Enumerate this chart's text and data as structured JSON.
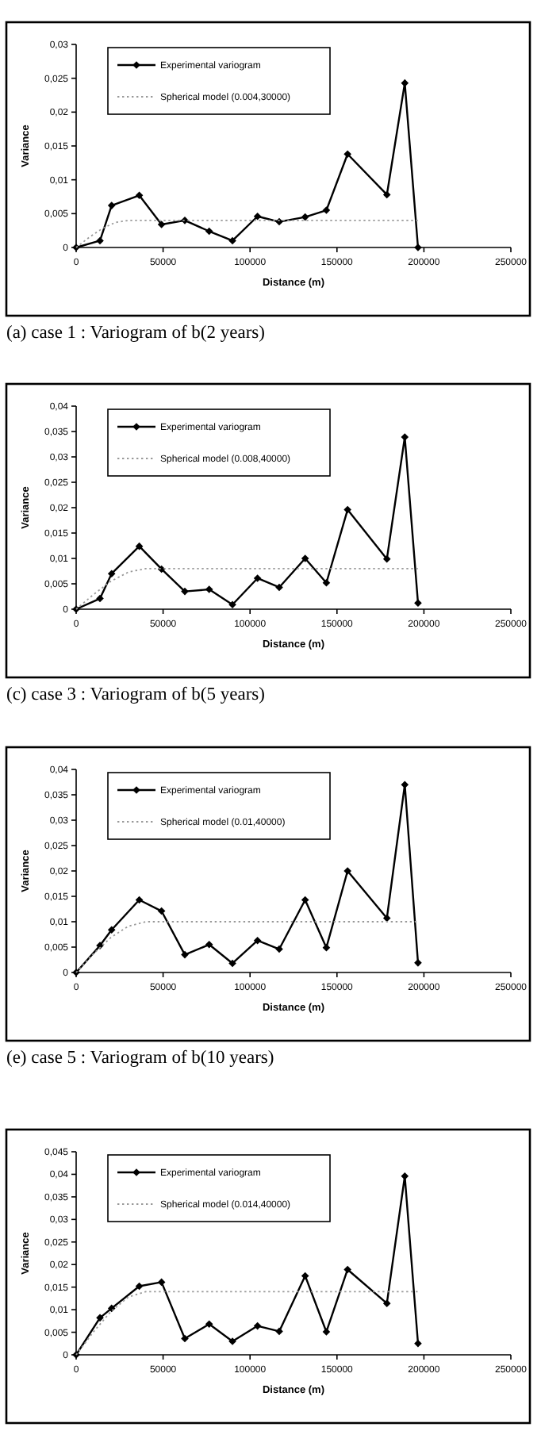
{
  "chart_data": [
    {
      "type": "line",
      "xlabel": "Distance (m)",
      "ylabel": "Variance",
      "annotations": [
        "(a) case 1 : Variogram of b(2 years)"
      ],
      "xlim": [
        0,
        250000
      ],
      "xticks": [
        0,
        50000,
        100000,
        150000,
        200000,
        250000
      ],
      "ylim": [
        0,
        0.03
      ],
      "yticks": [
        {
          "value": 0,
          "label": "0"
        },
        {
          "value": 0.005,
          "label": "0,005"
        },
        {
          "value": 0.01,
          "label": "0,01"
        },
        {
          "value": 0.015,
          "label": "0,015"
        },
        {
          "value": 0.02,
          "label": "0,02"
        },
        {
          "value": 0.025,
          "label": "0,025"
        },
        {
          "value": 0.03,
          "label": "0,03"
        }
      ],
      "legend": "top left",
      "grid": false,
      "series": [
        {
          "name": "Experimental variogram",
          "color": "#000000",
          "marker": "diamond",
          "line_style": "solid",
          "x": [
            0,
            13700,
            20400,
            36300,
            49100,
            62500,
            76500,
            89900,
            104300,
            116800,
            131700,
            143900,
            156100,
            178700,
            189000,
            196600
          ],
          "values": [
            0,
            0.001,
            0.0062,
            0.0077,
            0.0034,
            0.004,
            0.0024,
            0.001,
            0.0046,
            0.0038,
            0.0045,
            0.0055,
            0.0138,
            0.0078,
            0.0243,
            0
          ]
        },
        {
          "name": "Spherical model (0.004,30000)",
          "color": "#999999",
          "marker": "none",
          "line_style": "dotted",
          "x": [
            0,
            7500,
            15000,
            22500,
            30000,
            196600
          ],
          "values": [
            0,
            0.0015,
            0.0028,
            0.0037,
            0.004,
            0.004
          ]
        }
      ]
    },
    {
      "type": "line",
      "xlabel": "Distance (m)",
      "ylabel": "Variance",
      "annotations": [
        "(c) case 3 : Variogram of b(5 years)"
      ],
      "xlim": [
        0,
        250000
      ],
      "xticks": [
        0,
        50000,
        100000,
        150000,
        200000,
        250000
      ],
      "ylim": [
        0,
        0.04
      ],
      "yticks": [
        {
          "value": 0,
          "label": "0"
        },
        {
          "value": 0.005,
          "label": "0,005"
        },
        {
          "value": 0.01,
          "label": "0,01"
        },
        {
          "value": 0.015,
          "label": "0,015"
        },
        {
          "value": 0.02,
          "label": "0,02"
        },
        {
          "value": 0.025,
          "label": "0,025"
        },
        {
          "value": 0.03,
          "label": "0,03"
        },
        {
          "value": 0.035,
          "label": "0,035"
        },
        {
          "value": 0.04,
          "label": "0,04"
        }
      ],
      "legend": "top left",
      "grid": false,
      "series": [
        {
          "name": "Experimental variogram",
          "color": "#000000",
          "marker": "diamond",
          "line_style": "solid",
          "x": [
            0,
            13700,
            20400,
            36300,
            49100,
            62500,
            76500,
            89900,
            104300,
            116800,
            131700,
            143900,
            156100,
            178700,
            189000,
            196600
          ],
          "values": [
            0,
            0.0021,
            0.007,
            0.0124,
            0.0079,
            0.0035,
            0.0039,
            0.0009,
            0.0061,
            0.0043,
            0.01,
            0.0052,
            0.0196,
            0.0099,
            0.0339,
            0.0012
          ]
        },
        {
          "name": "Spherical model (0.008,40000)",
          "color": "#999999",
          "marker": "none",
          "line_style": "dotted",
          "x": [
            0,
            10000,
            20000,
            30000,
            40000,
            196600
          ],
          "values": [
            0,
            0.0029,
            0.0055,
            0.0073,
            0.008,
            0.008
          ]
        }
      ]
    },
    {
      "type": "line",
      "xlabel": "Distance (m)",
      "ylabel": "Variance",
      "annotations": [
        "(e) case 5 : Variogram of b(10  years)"
      ],
      "xlim": [
        0,
        250000
      ],
      "xticks": [
        0,
        50000,
        100000,
        150000,
        200000,
        250000
      ],
      "ylim": [
        0,
        0.04
      ],
      "yticks": [
        {
          "value": 0,
          "label": "0"
        },
        {
          "value": 0.005,
          "label": "0,005"
        },
        {
          "value": 0.01,
          "label": "0,01"
        },
        {
          "value": 0.015,
          "label": "0,015"
        },
        {
          "value": 0.02,
          "label": "0,02"
        },
        {
          "value": 0.025,
          "label": "0,025"
        },
        {
          "value": 0.03,
          "label": "0,03"
        },
        {
          "value": 0.035,
          "label": "0,035"
        },
        {
          "value": 0.04,
          "label": "0,04"
        }
      ],
      "legend": "top left",
      "grid": false,
      "series": [
        {
          "name": "Experimental variogram",
          "color": "#000000",
          "marker": "diamond",
          "line_style": "solid",
          "x": [
            0,
            13700,
            20400,
            36300,
            49100,
            62500,
            76500,
            89900,
            104300,
            116800,
            131700,
            143900,
            156100,
            178700,
            189000,
            196600
          ],
          "values": [
            0,
            0.0053,
            0.0084,
            0.0143,
            0.0121,
            0.0035,
            0.0055,
            0.0018,
            0.0063,
            0.0046,
            0.0143,
            0.0049,
            0.02,
            0.0107,
            0.037,
            0.0019
          ]
        },
        {
          "name": "Spherical model (0.01,40000)",
          "color": "#999999",
          "marker": "none",
          "line_style": "dotted",
          "x": [
            0,
            10000,
            20000,
            30000,
            40000,
            196600
          ],
          "values": [
            0,
            0.0037,
            0.0069,
            0.0091,
            0.01,
            0.01
          ]
        }
      ]
    },
    {
      "type": "line",
      "xlabel": "Distance (m)",
      "ylabel": "Variance",
      "xlim": [
        0,
        250000
      ],
      "xticks": [
        0,
        50000,
        100000,
        150000,
        200000,
        250000
      ],
      "ylim": [
        0,
        0.045
      ],
      "yticks": [
        {
          "value": 0,
          "label": "0"
        },
        {
          "value": 0.005,
          "label": "0,005"
        },
        {
          "value": 0.01,
          "label": "0,01"
        },
        {
          "value": 0.015,
          "label": "0,015"
        },
        {
          "value": 0.02,
          "label": "0,02"
        },
        {
          "value": 0.025,
          "label": "0,025"
        },
        {
          "value": 0.03,
          "label": "0,03"
        },
        {
          "value": 0.035,
          "label": "0,035"
        },
        {
          "value": 0.04,
          "label": "0,04"
        },
        {
          "value": 0.045,
          "label": "0,045"
        }
      ],
      "legend": "top left",
      "grid": false,
      "series": [
        {
          "name": "Experimental variogram",
          "color": "#000000",
          "marker": "diamond",
          "line_style": "solid",
          "x": [
            0,
            13700,
            20400,
            36300,
            49100,
            62500,
            76500,
            89900,
            104300,
            116800,
            131700,
            143900,
            156100,
            178700,
            189000,
            196600
          ],
          "values": [
            0,
            0.0082,
            0.0103,
            0.0152,
            0.0161,
            0.0036,
            0.0068,
            0.003,
            0.0064,
            0.0052,
            0.0175,
            0.0051,
            0.0189,
            0.0114,
            0.0396,
            0.0025
          ]
        },
        {
          "name": "Spherical model (0.014,40000)",
          "color": "#999999",
          "marker": "none",
          "line_style": "dotted",
          "x": [
            0,
            10000,
            20000,
            30000,
            40000,
            196400
          ],
          "values": [
            0,
            0.0051,
            0.0096,
            0.0128,
            0.014,
            0.014
          ]
        }
      ]
    }
  ]
}
